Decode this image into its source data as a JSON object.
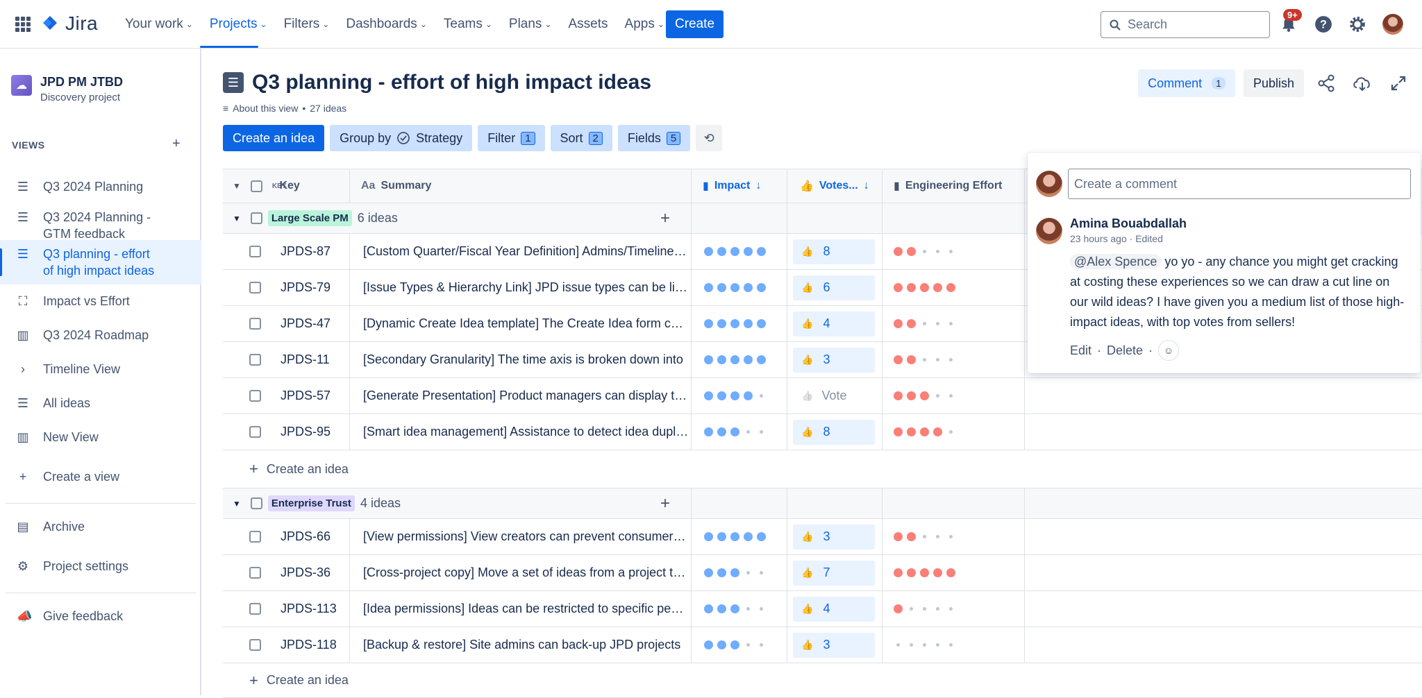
{
  "topnav": {
    "logo_text": "Jira",
    "items": [
      {
        "label": "Your work"
      },
      {
        "label": "Projects"
      },
      {
        "label": "Filters"
      },
      {
        "label": "Dashboards"
      },
      {
        "label": "Teams"
      },
      {
        "label": "Plans"
      },
      {
        "label": "Assets"
      },
      {
        "label": "Apps"
      }
    ],
    "create_label": "Create",
    "search_placeholder": "Search",
    "notification_badge": "9+"
  },
  "sidebar": {
    "project_name": "JPD PM JTBD",
    "project_type": "Discovery project",
    "views_label": "VIEWS",
    "items": [
      {
        "label": "Q3 2024 Planning",
        "icon": "list-icon"
      },
      {
        "label": "Q3 2024 Planning - GTM feedback",
        "icon": "list-icon"
      },
      {
        "label": "Q3 planning - effort of high impact ideas",
        "icon": "list-icon"
      },
      {
        "label": "Impact vs Effort",
        "icon": "matrix-icon"
      },
      {
        "label": "Q3 2024 Roadmap",
        "icon": "board-icon"
      },
      {
        "label": "Timeline View",
        "icon": "chevron-right-icon"
      },
      {
        "label": "All ideas",
        "icon": "list-icon"
      },
      {
        "label": "New View",
        "icon": "board-icon"
      },
      {
        "label": "Create a view",
        "icon": "plus-icon"
      }
    ],
    "archive_label": "Archive",
    "settings_label": "Project settings",
    "feedback_label": "Give feedback"
  },
  "page": {
    "title": "Q3 planning - effort of high impact ideas",
    "about_label": "About this view",
    "ideas_count": "27 ideas",
    "comment_label": "Comment",
    "comment_count": "1",
    "publish_label": "Publish"
  },
  "toolbar": {
    "create_idea": "Create an idea",
    "group_by": "Group by",
    "group_value": "Strategy",
    "filter": "Filter",
    "filter_count": "1",
    "sort": "Sort",
    "sort_count": "2",
    "fields": "Fields",
    "fields_count": "5"
  },
  "table": {
    "headers": {
      "key_prefix": "KEY",
      "key": "Key",
      "summary_prefix": "Aa",
      "summary": "Summary",
      "impact": "Impact",
      "votes": "Votes...",
      "effort": "Engineering Effort"
    },
    "create_idea_label": "Create an idea",
    "vote_empty_label": "Vote",
    "groups": [
      {
        "name": "Large Scale PM",
        "count": "6 ideas",
        "color": "#BAF3DB",
        "rows": [
          {
            "key": "JPDS-87",
            "summary": "[Custom Quarter/Fiscal Year Definition] Admins/Timeline configuration",
            "impact": 5,
            "votes": "8",
            "effort": 2
          },
          {
            "key": "JPDS-79",
            "summary": "[Issue Types & Hierarchy Link] JPD issue types can be linked",
            "impact": 5,
            "votes": "6",
            "effort": 5
          },
          {
            "key": "JPDS-47",
            "summary": "[Dynamic Create Idea template] The Create Idea form can be configured",
            "impact": 5,
            "votes": "4",
            "effort": 2
          },
          {
            "key": "JPDS-11",
            "summary": "[Secondary Granularity] The time axis is broken down into",
            "impact": 5,
            "votes": "3",
            "effort": 2
          },
          {
            "key": "JPDS-57",
            "summary": "[Generate Presentation] Product managers can display their roadmap",
            "impact": 4,
            "votes": "",
            "effort": 3
          },
          {
            "key": "JPDS-95",
            "summary": "[Smart idea management] Assistance to detect idea duplicates",
            "impact": 3,
            "votes": "8",
            "effort": 4
          }
        ]
      },
      {
        "name": "Enterprise Trust",
        "count": "4 ideas",
        "color": "#DFD8FD",
        "rows": [
          {
            "key": "JPDS-66",
            "summary": "[View permissions] View creators can prevent consumers from editing",
            "impact": 5,
            "votes": "3",
            "effort": 2
          },
          {
            "key": "JPDS-36",
            "summary": "[Cross-project copy] Move a set of ideas from a project to another",
            "impact": 3,
            "votes": "7",
            "effort": 5
          },
          {
            "key": "JPDS-113",
            "summary": "[Idea permissions] Ideas can be restricted to specific people",
            "impact": 3,
            "votes": "4",
            "effort": 1
          },
          {
            "key": "JPDS-118",
            "summary": "[Backup & restore] Site admins can back-up JPD projects",
            "impact": 3,
            "votes": "3",
            "effort": 0
          }
        ]
      }
    ]
  },
  "comment_panel": {
    "placeholder": "Create a comment",
    "author": "Amina Bouabdallah",
    "time": "23 hours ago",
    "edited": "Edited",
    "mention": "@Alex Spence",
    "body": " yo yo - any chance you might get cracking at costing these experiences so we can draw a cut line on our wild ideas? I have given you a medium list of those high-impact ideas, with top votes from sellers!",
    "edit_label": "Edit",
    "delete_label": "Delete"
  },
  "colors": {
    "accent": "#0C66E4",
    "impact_dot": "#579DFF",
    "effort_dot": "#F87168"
  }
}
